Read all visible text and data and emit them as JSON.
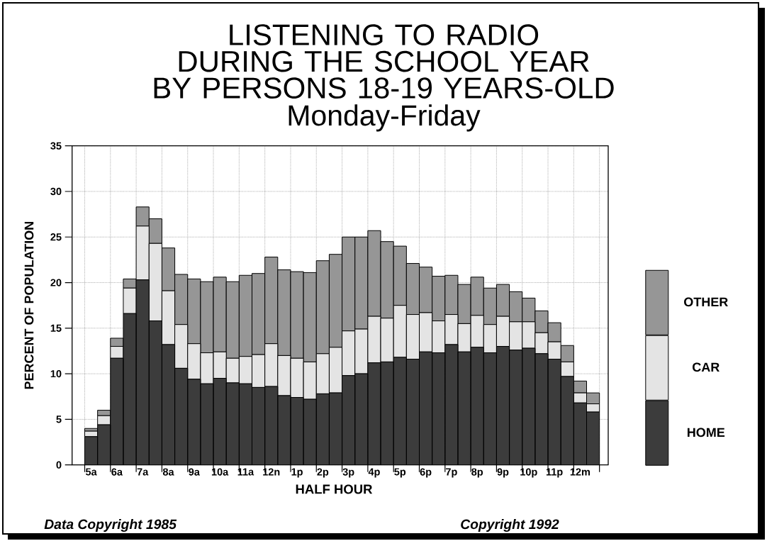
{
  "chart_data": {
    "type": "bar",
    "title": "LISTENING TO RADIO\nDURING THE SCHOOL YEAR\nBY PERSONS 18-19 YEARS-OLD",
    "subtitle": "Monday-Friday",
    "xlabel": "HALF HOUR",
    "ylabel": "PERCENT OF POPULATION",
    "annotations": [
      "Data Copyright 1985",
      "Copyright 1992"
    ],
    "categories": [
      "5a",
      null,
      "6a",
      null,
      "7a",
      null,
      "8a",
      null,
      "9a",
      null,
      "10a",
      null,
      "11a",
      null,
      "12n",
      null,
      "1p",
      null,
      "2p",
      null,
      "3p",
      null,
      "4p",
      null,
      "5p",
      null,
      "6p",
      null,
      "7p",
      null,
      "8p",
      null,
      "9p",
      null,
      "10p",
      null,
      "11p",
      null,
      "12m",
      null
    ],
    "ylim": [
      0,
      35
    ],
    "yticks": [
      0,
      5,
      10,
      15,
      20,
      25,
      30,
      35
    ],
    "stacked": true,
    "grid": true,
    "legend": "right",
    "series": [
      {
        "name": "HOME",
        "color": "#3c3c3c",
        "values": [
          3.1,
          4.4,
          11.7,
          16.6,
          20.3,
          15.8,
          13.2,
          10.6,
          9.4,
          8.9,
          9.5,
          9.0,
          8.9,
          8.5,
          8.6,
          7.6,
          7.4,
          7.2,
          7.8,
          7.9,
          9.8,
          10.0,
          11.2,
          11.3,
          11.8,
          11.6,
          12.4,
          12.3,
          13.2,
          12.4,
          12.9,
          12.3,
          13.0,
          12.6,
          12.8,
          12.2,
          11.6,
          9.7,
          6.8,
          5.8
        ]
      },
      {
        "name": "CAR",
        "color": "#e4e4e4",
        "values": [
          0.6,
          1.0,
          1.3,
          2.8,
          5.9,
          8.5,
          5.9,
          4.8,
          3.9,
          3.4,
          2.9,
          2.7,
          3.0,
          3.6,
          4.7,
          4.4,
          4.3,
          4.1,
          4.4,
          5.0,
          4.9,
          4.9,
          5.1,
          4.8,
          5.7,
          4.9,
          4.3,
          3.5,
          3.3,
          3.1,
          3.5,
          3.1,
          3.3,
          3.1,
          2.9,
          2.3,
          1.9,
          1.6,
          1.1,
          0.9
        ]
      },
      {
        "name": "OTHER",
        "color": "#969696",
        "values": [
          0.3,
          0.6,
          0.9,
          1.0,
          2.1,
          2.7,
          4.7,
          5.5,
          7.1,
          7.8,
          8.2,
          8.4,
          8.9,
          8.9,
          9.5,
          9.4,
          9.5,
          9.8,
          10.2,
          10.2,
          10.3,
          10.1,
          9.4,
          8.4,
          6.5,
          5.6,
          5.0,
          4.9,
          4.3,
          4.3,
          4.2,
          4.0,
          3.5,
          3.3,
          2.6,
          2.4,
          2.1,
          1.8,
          1.3,
          1.2
        ]
      }
    ]
  }
}
